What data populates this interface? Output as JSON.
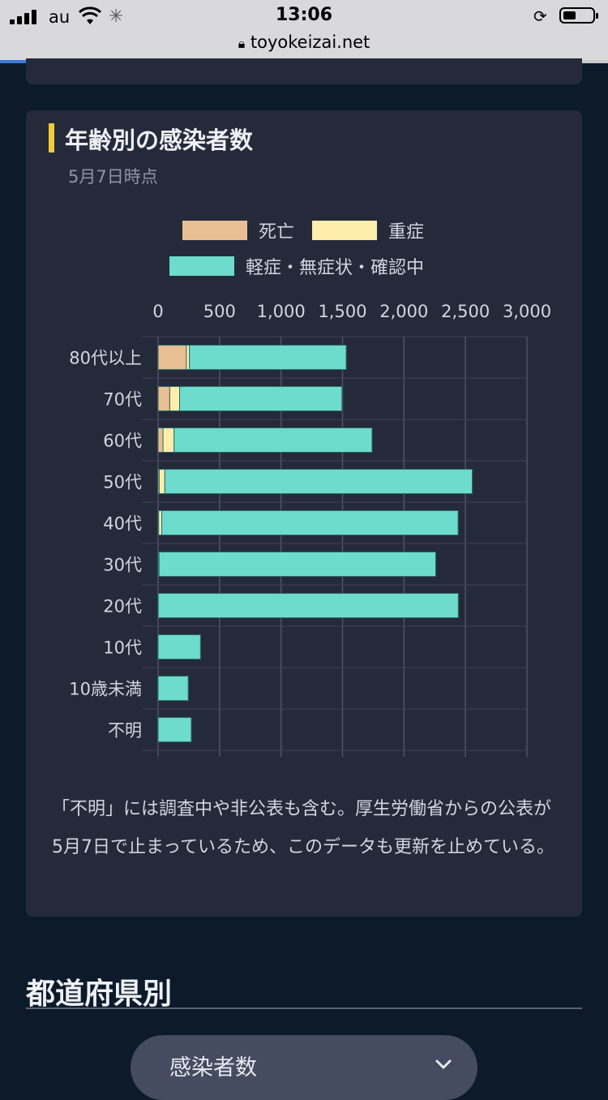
{
  "status_bar": {
    "carrier": "au",
    "time": "13:06",
    "url": "toyokeizai.net",
    "icons": [
      "signal-icon",
      "wifi-icon",
      "loading-icon",
      "orientation-lock-icon",
      "battery-icon",
      "lock-icon"
    ],
    "battery_level": 0.45,
    "page_load_progress": 0.25
  },
  "card": {
    "title": "年齢別の感染者数",
    "subtitle": "5月7日時点",
    "legend": [
      {
        "label": "死亡",
        "color": "#e8bf92"
      },
      {
        "label": "重症",
        "color": "#fdeeac"
      },
      {
        "label": "軽症・無症状・確認中",
        "color": "#6ddbcd"
      }
    ],
    "note": "「不明」には調査中や非公表も含む。厚生労働省からの公表が5月7日で止まっているため、このデータも更新を止めている。"
  },
  "chart_data": {
    "type": "bar",
    "orientation": "horizontal",
    "stacked": true,
    "categories": [
      "80代以上",
      "70代",
      "60代",
      "50代",
      "40代",
      "30代",
      "20代",
      "10代",
      "10歳未満",
      "不明"
    ],
    "series": [
      {
        "name": "死亡",
        "color": "#e8bf92",
        "values": [
          230,
          95,
          40,
          10,
          5,
          3,
          0,
          0,
          0,
          0
        ]
      },
      {
        "name": "重症",
        "color": "#fdeeac",
        "values": [
          25,
          80,
          90,
          45,
          25,
          5,
          2,
          0,
          0,
          0
        ]
      },
      {
        "name": "軽症・無症状・確認中",
        "color": "#6ddbcd",
        "values": [
          1275,
          1320,
          1610,
          2500,
          2410,
          2250,
          2440,
          345,
          245,
          270
        ]
      }
    ],
    "xlim": [
      0,
      3000
    ],
    "xticks": [
      "0",
      "500",
      "1,000",
      "1,500",
      "2,000",
      "2,500",
      "3,000"
    ],
    "grid": true,
    "legend_position": "top"
  },
  "section": {
    "title": "都道府県別",
    "select_label": "感染者数"
  }
}
